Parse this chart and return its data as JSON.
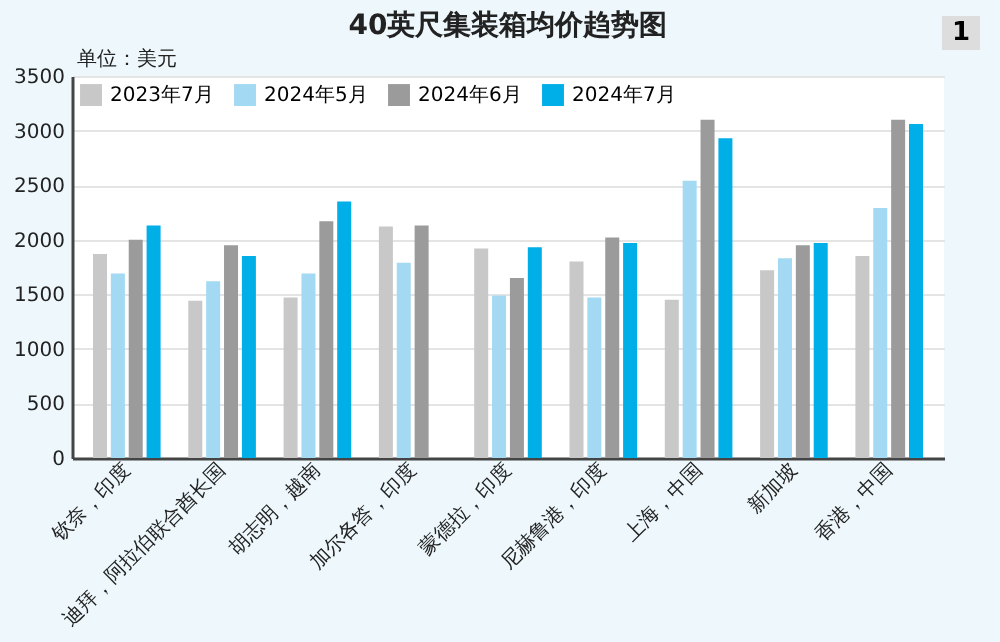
{
  "chart_data": {
    "type": "bar",
    "title": "40英尺集装箱均价趋势图",
    "ylabel": "单位：美元",
    "annotations": [
      "1"
    ],
    "categories": [
      "钦奈，印度",
      "迪拜，阿拉伯联合酋长国",
      "胡志明，越南",
      "加尔各答，印度",
      "蒙德拉，印度",
      "尼赫鲁港，印度",
      "上海，中国",
      "新加坡",
      "香港，中国"
    ],
    "series": [
      {
        "name": "2023年7月",
        "color": "#c8c8c8",
        "values": [
          1870,
          1440,
          1470,
          2120,
          1920,
          1800,
          1450,
          1720,
          1850
        ]
      },
      {
        "name": "2024年5月",
        "color": "#a3d9f2",
        "values": [
          1690,
          1620,
          1690,
          1790,
          1490,
          1470,
          2540,
          1830,
          2290
        ]
      },
      {
        "name": "2024年6月",
        "color": "#9b9b9b",
        "values": [
          2000,
          1950,
          2170,
          2130,
          1650,
          2020,
          3100,
          1950,
          3100
        ]
      },
      {
        "name": "2024年7月",
        "color": "#00aee8",
        "values": [
          2130,
          1850,
          2350,
          null,
          1930,
          1970,
          2930,
          1970,
          3060
        ]
      }
    ],
    "ylim": [
      0,
      3500
    ],
    "yticks": [
      0,
      500,
      1000,
      1500,
      2000,
      2500,
      3000,
      3500
    ],
    "grid": "y",
    "legend": "top left"
  }
}
